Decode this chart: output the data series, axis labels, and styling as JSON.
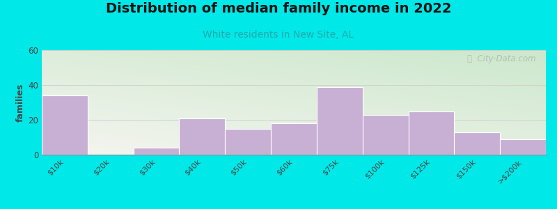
{
  "title": "Distribution of median family income in 2022",
  "subtitle": "White residents in New Site, AL",
  "categories": [
    "$10k",
    "$20k",
    "$30k",
    "$40k",
    "$50k",
    "$60k",
    "$75k",
    "$100k",
    "$125k",
    "$150k",
    ">$200k"
  ],
  "values": [
    34,
    0,
    4,
    21,
    15,
    18,
    39,
    23,
    25,
    13,
    9
  ],
  "bar_color": "#c8afd4",
  "bar_edge_color": "#ffffff",
  "background_outer": "#00e8e8",
  "background_plot_top_left": "#cce8cc",
  "background_plot_bottom_right": "#f5f5f0",
  "title_fontsize": 14,
  "subtitle_fontsize": 10,
  "subtitle_color": "#22aaaa",
  "ylabel": "families",
  "ylabel_fontsize": 9,
  "ylim": [
    0,
    60
  ],
  "yticks": [
    0,
    20,
    40,
    60
  ],
  "grid_color": "#cccccc",
  "watermark_color": "#b0b8b0"
}
